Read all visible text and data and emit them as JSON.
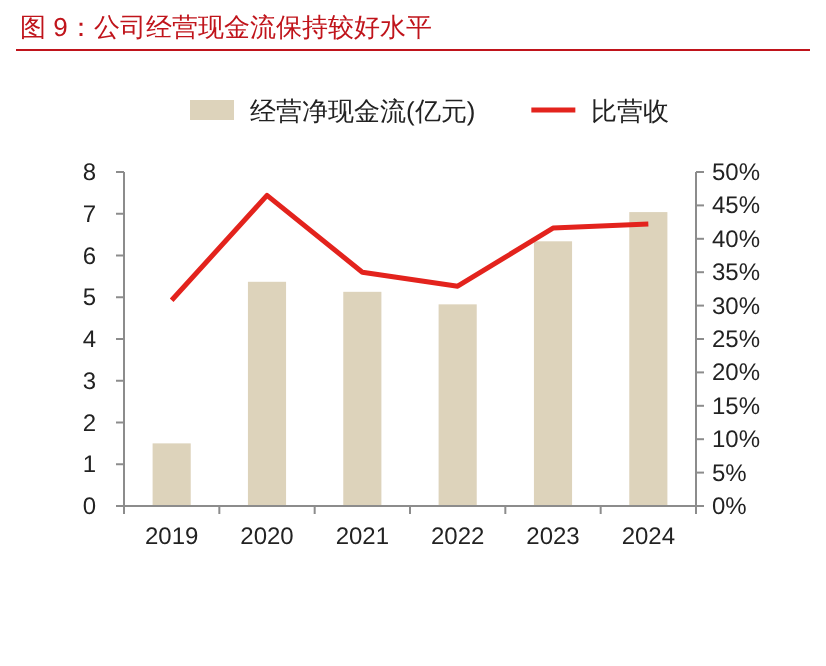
{
  "chart_data": {
    "type": "bar",
    "title": "图 9：公司经营现金流保持较好水平",
    "categories": [
      "2019",
      "2020",
      "2021",
      "2022",
      "2023",
      "2024"
    ],
    "series": [
      {
        "name": "经营净现金流(亿元)",
        "color": "#ddd3bb",
        "values": [
          1.5,
          5.37,
          5.13,
          4.83,
          6.34,
          7.04
        ]
      },
      {
        "name": "比营收",
        "type": "line",
        "axis": "y2",
        "color": "#e3231d",
        "values": [
          30.8,
          46.5,
          35.0,
          32.9,
          41.6,
          42.2
        ]
      }
    ],
    "ylim": [
      0,
      8
    ],
    "yticks": [
      0,
      1,
      2,
      3,
      4,
      5,
      6,
      7,
      8
    ],
    "y2lim": [
      0,
      50
    ],
    "y2ticks": [
      {
        "value": 0,
        "label": "0%"
      },
      {
        "value": 5,
        "label": "5%"
      },
      {
        "value": 10,
        "label": "10%"
      },
      {
        "value": 15,
        "label": "15%"
      },
      {
        "value": 20,
        "label": "20%"
      },
      {
        "value": 25,
        "label": "25%"
      },
      {
        "value": 30,
        "label": "30%"
      },
      {
        "value": 35,
        "label": "35%"
      },
      {
        "value": 40,
        "label": "40%"
      },
      {
        "value": 45,
        "label": "45%"
      },
      {
        "value": 50,
        "label": "50%"
      }
    ],
    "legend": "top",
    "grid": false,
    "marker": "none",
    "line_style": "solid"
  }
}
